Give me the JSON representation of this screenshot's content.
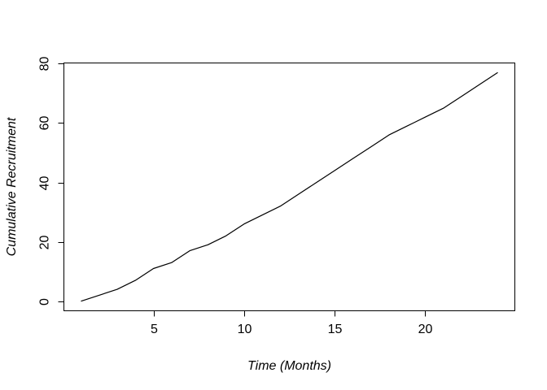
{
  "chart_data": {
    "type": "line",
    "title": "",
    "xlabel": "Time (Months)",
    "ylabel": "Cumulative Recruitment",
    "x_ticks": [
      5,
      10,
      15,
      20
    ],
    "y_ticks": [
      0,
      20,
      40,
      60,
      80
    ],
    "xlim": [
      0.08,
      24.92
    ],
    "ylim": [
      -3.1,
      80.1
    ],
    "grid": false,
    "legend": false,
    "background_color": "#ffffff",
    "axis_color": "#000000",
    "line_color": "#000000",
    "series": [
      {
        "name": "cumulative-recruitment",
        "x": [
          1,
          2,
          3,
          4,
          5,
          6,
          7,
          8,
          9,
          10,
          11,
          12,
          13,
          14,
          15,
          16,
          17,
          18,
          19,
          20,
          21,
          22,
          23,
          24
        ],
        "y": [
          0,
          2,
          4,
          7,
          11,
          13,
          17,
          19,
          22,
          26,
          29,
          32,
          36,
          40,
          44,
          48,
          52,
          56,
          59,
          62,
          65,
          69,
          73,
          77
        ]
      }
    ]
  }
}
